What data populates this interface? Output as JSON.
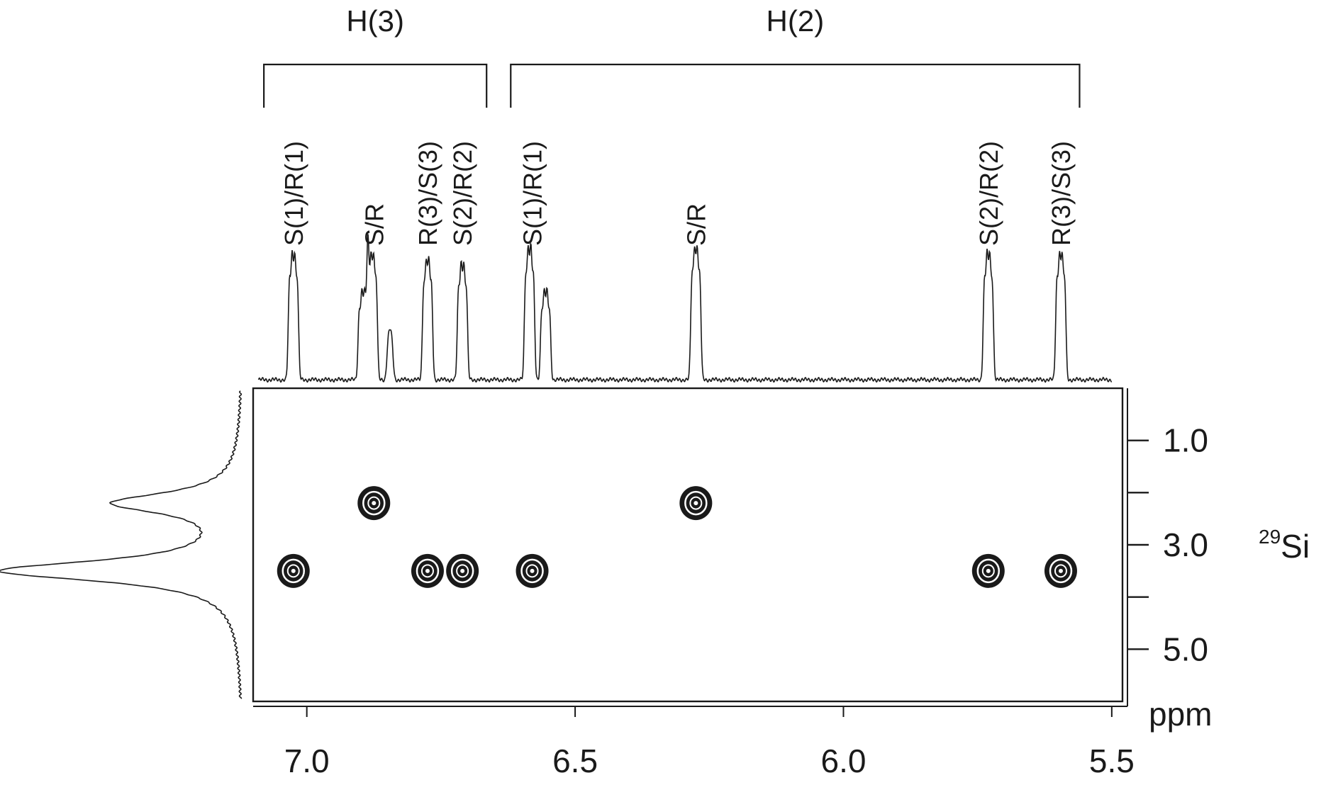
{
  "chart_data": {
    "type": "scatter",
    "subtype": "2D NMR correlation spectrum (29Si-1H) with 1D projections",
    "x_axis": {
      "range": [
        7.1,
        5.48
      ],
      "reversed": true,
      "ticks": [
        7.0,
        6.5,
        6.0,
        5.5
      ],
      "tick_labels": [
        "7.0",
        "6.5",
        "6.0",
        "5.5"
      ]
    },
    "y_axis": {
      "range": [
        0.0,
        6.0
      ],
      "reversed": true,
      "ticks": [
        1.0,
        2.0,
        3.0,
        4.0,
        5.0
      ],
      "labeled_ticks": [
        1.0,
        3.0,
        5.0
      ],
      "tick_labels": [
        "1.0",
        "3.0",
        "5.0"
      ],
      "label_sup": "29",
      "label_main": "Si",
      "unit": "ppm"
    },
    "groups": [
      {
        "label": "H(3)",
        "x_start": 7.08,
        "x_end": 6.665
      },
      {
        "label": "H(2)",
        "x_start": 6.62,
        "x_end": 5.56
      }
    ],
    "peak_labels": [
      {
        "text": "S(1)/R(1)",
        "x": 7.025
      },
      {
        "text": "S/R",
        "x": 6.875
      },
      {
        "text": "R(3)/S(3)",
        "x": 6.775
      },
      {
        "text": "S(2)/R(2)",
        "x": 6.71
      },
      {
        "text": "S(1)/R(1)",
        "x": 6.58
      },
      {
        "text": "S/R",
        "x": 6.275
      },
      {
        "text": "S(2)/R(2)",
        "x": 5.73
      },
      {
        "text": "R(3)/S(3)",
        "x": 5.595
      }
    ],
    "cross_peaks": [
      {
        "x": 7.025,
        "y": 3.5
      },
      {
        "x": 6.875,
        "y": 2.2
      },
      {
        "x": 6.775,
        "y": 3.5
      },
      {
        "x": 6.71,
        "y": 3.5
      },
      {
        "x": 6.58,
        "y": 3.5
      },
      {
        "x": 6.275,
        "y": 2.2
      },
      {
        "x": 5.73,
        "y": 3.5
      },
      {
        "x": 5.595,
        "y": 3.5
      }
    ],
    "projection_1h_peaks": [
      {
        "x": 7.025,
        "height": 1.0,
        "split": 0.005
      },
      {
        "x": 6.895,
        "height": 0.7,
        "split": 0.005
      },
      {
        "x": 6.878,
        "height": 1.0,
        "split": 0.005
      },
      {
        "x": 6.845,
        "height": 0.25,
        "split": 0.003
      },
      {
        "x": 6.775,
        "height": 0.95,
        "split": 0.005
      },
      {
        "x": 6.71,
        "height": 0.92,
        "split": 0.005
      },
      {
        "x": 6.585,
        "height": 1.05,
        "split": 0.005
      },
      {
        "x": 6.555,
        "height": 0.7,
        "split": 0.005
      },
      {
        "x": 6.275,
        "height": 1.05,
        "split": 0.005
      },
      {
        "x": 5.73,
        "height": 1.0,
        "split": 0.005
      },
      {
        "x": 5.595,
        "height": 1.0,
        "split": 0.005
      }
    ],
    "projection_29si_peaks": [
      {
        "y": 2.2,
        "height": 0.52
      },
      {
        "y": 3.5,
        "height": 1.0
      }
    ],
    "grid": false,
    "legend": "none"
  }
}
